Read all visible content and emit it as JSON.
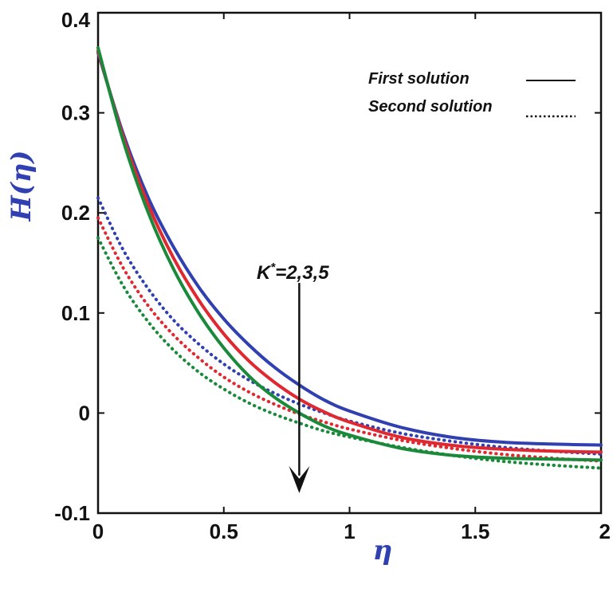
{
  "chart_data": {
    "type": "line",
    "xlabel": "η",
    "ylabel": "H(η)",
    "xlim": [
      0,
      2
    ],
    "ylim": [
      -0.1,
      0.4
    ],
    "xticks": [
      0,
      0.5,
      1,
      1.5,
      2
    ],
    "xtick_labels": [
      "0",
      "0.5",
      "1",
      "1.5",
      "2"
    ],
    "yticks": [
      -0.1,
      0,
      0.1,
      0.2,
      0.3,
      0.4
    ],
    "ytick_labels": [
      "-0.1",
      "0",
      "0.1",
      "0.2",
      "0.3",
      "0.4"
    ],
    "legend": {
      "position": "top-right",
      "entries": [
        {
          "label": "First solution",
          "style": "solid"
        },
        {
          "label": "Second solution",
          "style": "dotted"
        }
      ]
    },
    "annotation": {
      "text_k": "K",
      "text_star": "*",
      "text_rest": "=2,3,5",
      "arrow_x": 0.8,
      "arrow_y_from": 0.13,
      "arrow_y_to": -0.08
    },
    "series": [
      {
        "name": "First solution, K*=2",
        "style": "solid",
        "color": "#3040b0",
        "x": [
          0,
          0.1,
          0.2,
          0.3,
          0.4,
          0.5,
          0.6,
          0.7,
          0.8,
          0.9,
          1.0,
          1.2,
          1.4,
          1.6,
          1.8,
          2.0
        ],
        "y": [
          0.36,
          0.279,
          0.215,
          0.166,
          0.126,
          0.094,
          0.068,
          0.046,
          0.028,
          0.013,
          0.002,
          -0.014,
          -0.024,
          -0.029,
          -0.031,
          -0.032
        ]
      },
      {
        "name": "First solution, K*=3",
        "style": "solid",
        "color": "#e02830",
        "x": [
          0,
          0.1,
          0.2,
          0.3,
          0.4,
          0.5,
          0.6,
          0.7,
          0.8,
          0.9,
          1.0,
          1.2,
          1.4,
          1.6,
          1.8,
          2.0
        ],
        "y": [
          0.362,
          0.276,
          0.208,
          0.155,
          0.113,
          0.079,
          0.052,
          0.031,
          0.014,
          0.001,
          -0.009,
          -0.024,
          -0.032,
          -0.036,
          -0.038,
          -0.039
        ]
      },
      {
        "name": "First solution, K*=5",
        "style": "solid",
        "color": "#1a8a3a",
        "x": [
          0,
          0.1,
          0.2,
          0.3,
          0.4,
          0.5,
          0.6,
          0.7,
          0.8,
          0.9,
          1.0,
          1.2,
          1.4,
          1.6,
          1.8,
          2.0
        ],
        "y": [
          0.365,
          0.272,
          0.2,
          0.144,
          0.1,
          0.065,
          0.037,
          0.016,
          0.0,
          -0.013,
          -0.022,
          -0.035,
          -0.042,
          -0.045,
          -0.046,
          -0.047
        ]
      },
      {
        "name": "Second solution, K*=2",
        "style": "dotted",
        "color": "#3040b0",
        "x": [
          0,
          0.1,
          0.2,
          0.3,
          0.4,
          0.5,
          0.6,
          0.7,
          0.8,
          0.9,
          1.0,
          1.2,
          1.4,
          1.6,
          1.8,
          2.0
        ],
        "y": [
          0.215,
          0.163,
          0.124,
          0.093,
          0.069,
          0.049,
          0.033,
          0.02,
          0.009,
          0.0,
          -0.008,
          -0.02,
          -0.028,
          -0.034,
          -0.038,
          -0.041
        ]
      },
      {
        "name": "Second solution, K*=3",
        "style": "dotted",
        "color": "#e02830",
        "x": [
          0,
          0.1,
          0.2,
          0.3,
          0.4,
          0.5,
          0.6,
          0.7,
          0.8,
          0.9,
          1.0,
          1.2,
          1.4,
          1.6,
          1.8,
          2.0
        ],
        "y": [
          0.195,
          0.145,
          0.107,
          0.078,
          0.055,
          0.036,
          0.021,
          0.009,
          -0.001,
          -0.009,
          -0.016,
          -0.027,
          -0.035,
          -0.041,
          -0.045,
          -0.048
        ]
      },
      {
        "name": "Second solution, K*=5",
        "style": "dotted",
        "color": "#1a8a3a",
        "x": [
          0,
          0.1,
          0.2,
          0.3,
          0.4,
          0.5,
          0.6,
          0.7,
          0.8,
          0.9,
          1.0,
          1.2,
          1.4,
          1.6,
          1.8,
          2.0
        ],
        "y": [
          0.175,
          0.127,
          0.091,
          0.063,
          0.041,
          0.024,
          0.01,
          -0.001,
          -0.01,
          -0.018,
          -0.024,
          -0.034,
          -0.042,
          -0.048,
          -0.052,
          -0.055
        ]
      }
    ]
  }
}
